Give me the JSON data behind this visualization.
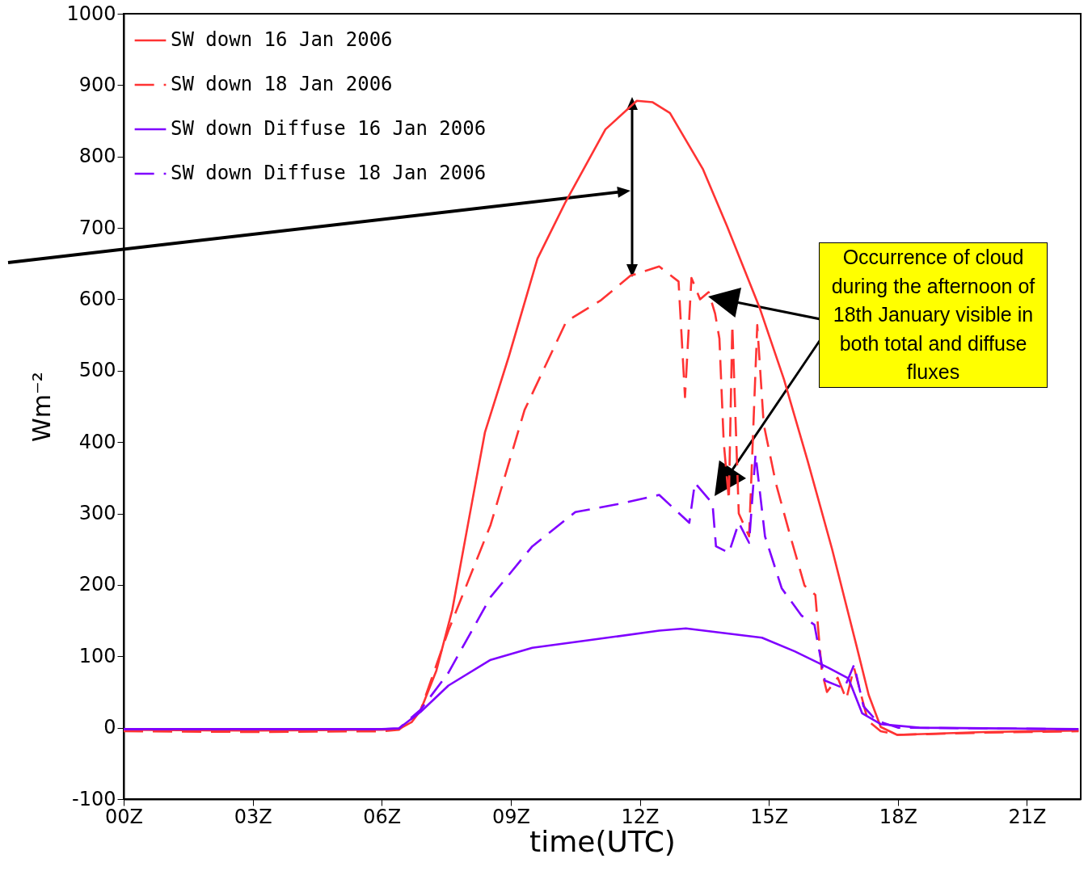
{
  "chart_data": {
    "type": "line",
    "xlabel": "time(UTC)",
    "ylabel": "Wm⁻²",
    "annotations": [
      "Occurrence of cloud during the afternoon of 18th January visible in both total and diffuse fluxes"
    ],
    "xlim": [
      0,
      22.25
    ],
    "ylim": [
      -100,
      1000
    ],
    "xticks": [
      {
        "value": 0,
        "label": "00Z"
      },
      {
        "value": 3,
        "label": "03Z"
      },
      {
        "value": 6,
        "label": "06Z"
      },
      {
        "value": 9,
        "label": "09Z"
      },
      {
        "value": 12,
        "label": "12Z"
      },
      {
        "value": 15,
        "label": "15Z"
      },
      {
        "value": 18,
        "label": "18Z"
      },
      {
        "value": 21,
        "label": "21Z"
      }
    ],
    "yticks": [
      -100,
      0,
      100,
      200,
      300,
      400,
      500,
      600,
      700,
      800,
      900,
      1000
    ],
    "grid": false,
    "legend": "top left",
    "marker": "none",
    "series": [
      {
        "name": "SW down 16 Jan 2006",
        "color": "#ff3333",
        "line_style": "solid",
        "x": [
          0,
          3,
          6,
          6.4,
          6.7,
          6.9,
          7.27,
          7.64,
          8.02,
          8.4,
          8.96,
          9.62,
          10.27,
          11.2,
          11.93,
          12.3,
          12.7,
          13.47,
          14.03,
          14.78,
          15.35,
          15.9,
          16.47,
          17.04,
          17.32,
          17.6,
          17.98,
          19,
          20,
          22.2
        ],
        "values": [
          -3,
          -4,
          -3,
          -2,
          8,
          24,
          80,
          165,
          290,
          414,
          521,
          657,
          736,
          838,
          878,
          876,
          861,
          782,
          702,
          589,
          488,
          374,
          250,
          114,
          46,
          1,
          -10,
          -8,
          -6,
          -4
        ]
      },
      {
        "name": "SW down 18 Jan 2006",
        "color": "#ff3333",
        "line_style": "dashed",
        "x": [
          0,
          3,
          6,
          6.4,
          6.9,
          7.55,
          8.53,
          9.32,
          10.29,
          11.08,
          11.78,
          12.45,
          12.9,
          13.05,
          13.2,
          13.4,
          13.6,
          13.75,
          13.85,
          13.95,
          14.07,
          14.15,
          14.3,
          14.54,
          14.73,
          14.88,
          15.16,
          15.5,
          15.83,
          16.08,
          16.23,
          16.35,
          16.6,
          16.8,
          16.98,
          17.3,
          17.6,
          18,
          20,
          22.2
        ],
        "values": [
          -5,
          -6,
          -5,
          -3,
          24,
          136,
          284,
          445,
          569,
          598,
          633,
          646,
          625,
          463,
          630,
          600,
          610,
          580,
          545,
          400,
          319,
          564,
          300,
          268,
          564,
          425,
          343,
          268,
          199,
          186,
          79,
          50,
          70,
          40,
          84,
          10,
          -5,
          -10,
          -7,
          -5
        ]
      },
      {
        "name": "SW down Diffuse 16 Jan 2006",
        "color": "#7f00ff",
        "line_style": "solid",
        "x": [
          0,
          3,
          6,
          6.4,
          6.9,
          7.55,
          8.53,
          9.5,
          11.0,
          12.45,
          13.07,
          14.84,
          15.6,
          16.38,
          16.85,
          17.17,
          17.6,
          18.5,
          22.2
        ],
        "values": [
          -2,
          -2,
          -2,
          -1,
          22,
          59,
          95,
          112,
          124,
          136,
          139,
          126,
          107,
          84,
          69,
          20,
          5,
          0,
          -2
        ]
      },
      {
        "name": "SW down Diffuse 18 Jan 2006",
        "color": "#7f00ff",
        "line_style": "dashed",
        "x": [
          0,
          3,
          6,
          6.4,
          6.9,
          7.55,
          8.53,
          9.5,
          10.5,
          11.48,
          12.45,
          13.15,
          13.28,
          13.69,
          13.77,
          14.07,
          14.3,
          14.54,
          14.69,
          14.91,
          15.3,
          15.76,
          16.06,
          16.3,
          16.55,
          16.75,
          16.98,
          17.2,
          17.5,
          18,
          22.2
        ],
        "values": [
          -2,
          -2,
          -2,
          -1,
          25,
          77,
          183,
          254,
          302,
          313,
          326,
          287,
          343,
          314,
          254,
          245,
          287,
          259,
          383,
          268,
          195,
          157,
          144,
          66,
          60,
          55,
          88,
          30,
          10,
          0,
          -2
        ]
      }
    ]
  }
}
